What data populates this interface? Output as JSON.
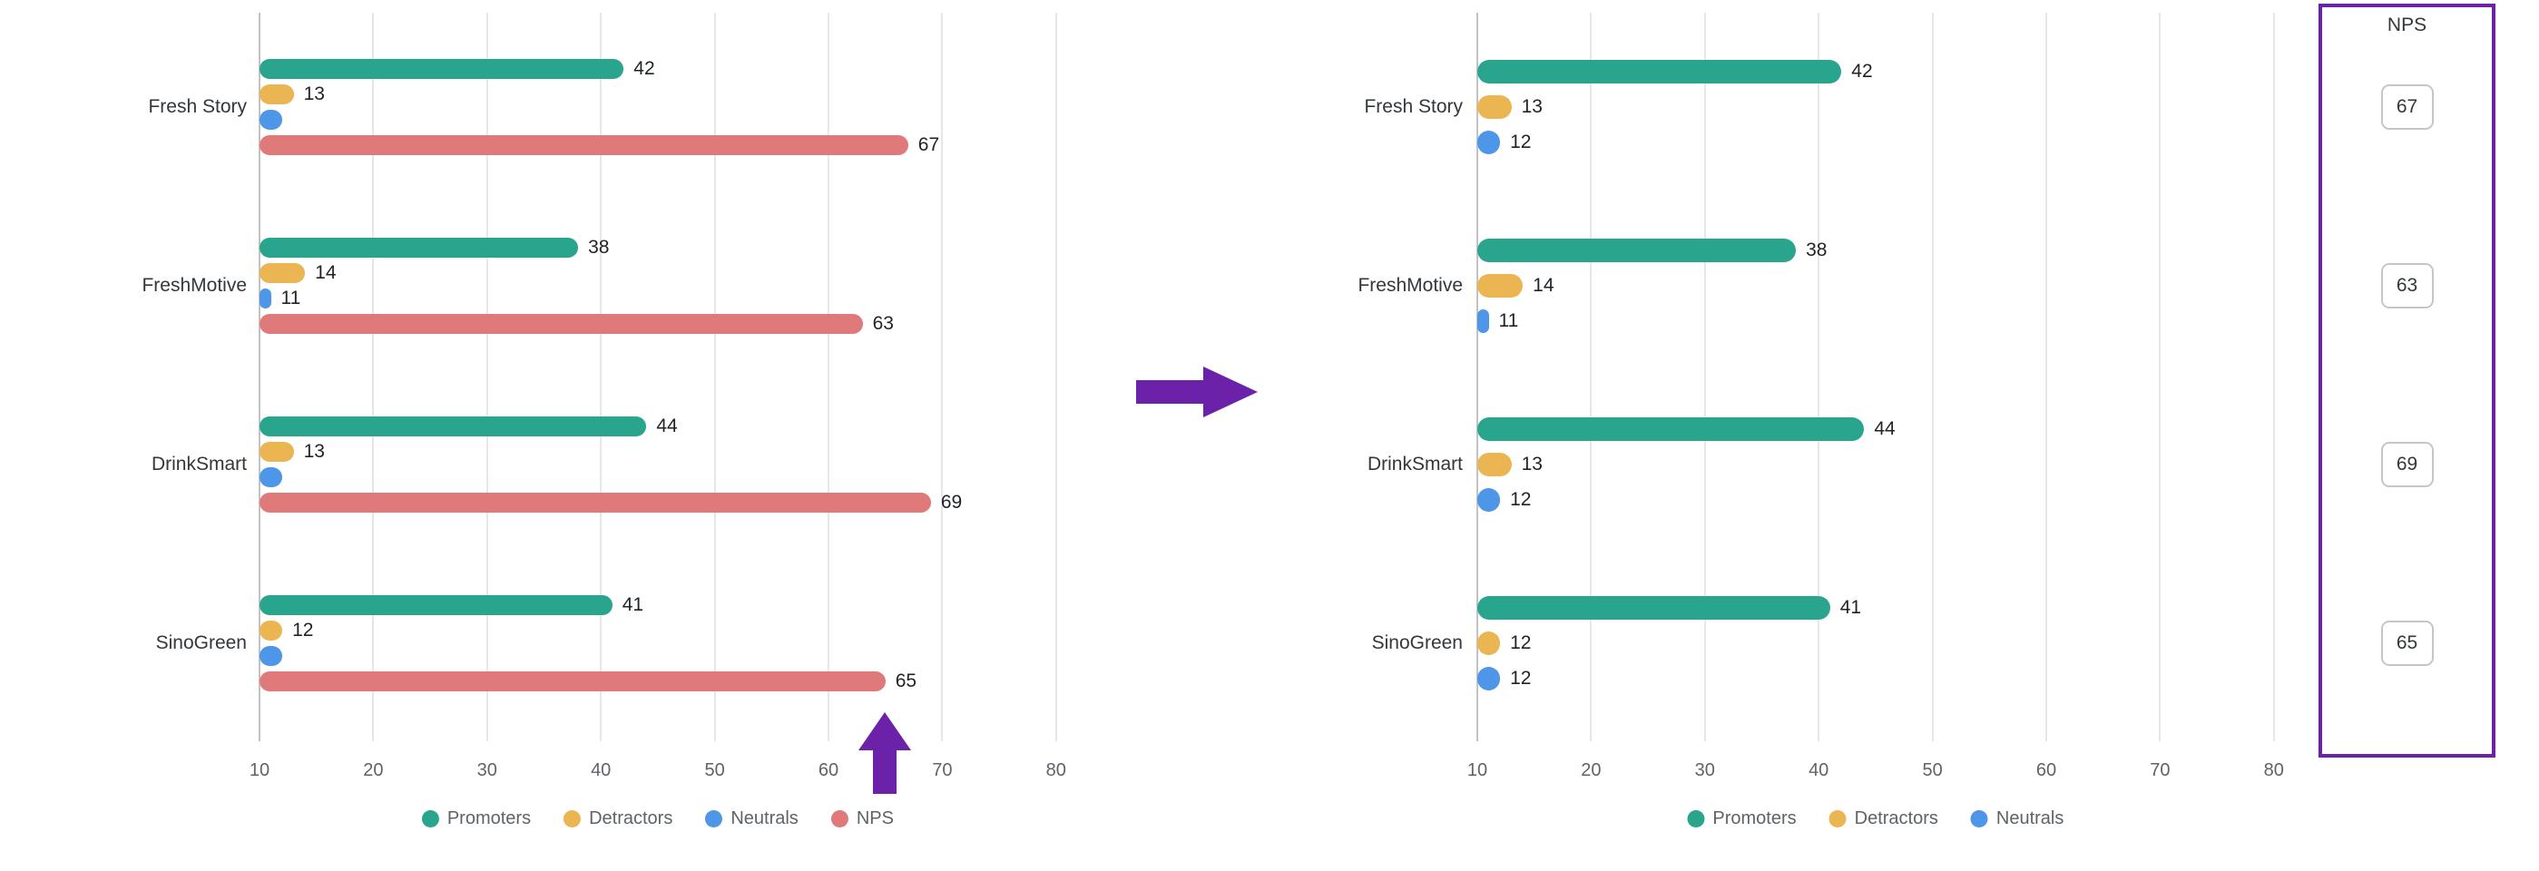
{
  "chart_data": [
    {
      "id": "nps-breakdown-before",
      "type": "bar",
      "orientation": "horizontal",
      "categories": [
        "Fresh Story",
        "FreshMotive",
        "DrinkSmart",
        "SinoGreen"
      ],
      "series": [
        {
          "name": "Promoters",
          "color": "#2AA58D",
          "values": [
            42,
            38,
            44,
            41
          ],
          "labels": [
            "42",
            "38",
            "44",
            "41"
          ]
        },
        {
          "name": "Detractors",
          "color": "#EBB551",
          "values": [
            13,
            14,
            13,
            12
          ],
          "labels": [
            "13",
            "14",
            "13",
            "12"
          ]
        },
        {
          "name": "Neutrals",
          "color": "#4D96E8",
          "values": [
            12,
            11,
            12,
            12
          ],
          "labels": [
            null,
            "11",
            null,
            null
          ]
        },
        {
          "name": "NPS",
          "color": "#E07A7A",
          "values": [
            67,
            63,
            69,
            65
          ],
          "labels": [
            "67",
            "63",
            "69",
            "65"
          ]
        }
      ],
      "x_axis": {
        "min": 10,
        "max": 85,
        "ticks": [
          10,
          20,
          30,
          40,
          50,
          60,
          70,
          80
        ]
      },
      "legend": [
        "Promoters",
        "Detractors",
        "Neutrals",
        "NPS"
      ],
      "grid": true,
      "legend_position": "bottom"
    },
    {
      "id": "nps-breakdown-after",
      "type": "bar",
      "orientation": "horizontal",
      "categories": [
        "Fresh Story",
        "FreshMotive",
        "DrinkSmart",
        "SinoGreen"
      ],
      "series": [
        {
          "name": "Promoters",
          "color": "#2AA58D",
          "values": [
            42,
            38,
            44,
            41
          ],
          "labels": [
            "42",
            "38",
            "44",
            "41"
          ]
        },
        {
          "name": "Detractors",
          "color": "#EBB551",
          "values": [
            13,
            14,
            13,
            12
          ],
          "labels": [
            "13",
            "14",
            "13",
            "12"
          ]
        },
        {
          "name": "Neutrals",
          "color": "#4D96E8",
          "values": [
            12,
            11,
            12,
            12
          ],
          "labels": [
            "12",
            "11",
            "12",
            "12"
          ]
        }
      ],
      "x_axis": {
        "min": 10,
        "max": 85,
        "ticks": [
          10,
          20,
          30,
          40,
          50,
          60,
          70,
          80
        ]
      },
      "legend": [
        "Promoters",
        "Detractors",
        "Neutrals"
      ],
      "grid": true,
      "legend_position": "bottom"
    }
  ],
  "nps_panel": {
    "title": "NPS",
    "values": [
      "67",
      "63",
      "69",
      "65"
    ],
    "border_color": "#6B21A8"
  },
  "arrows": {
    "color": "#6B21A8"
  }
}
